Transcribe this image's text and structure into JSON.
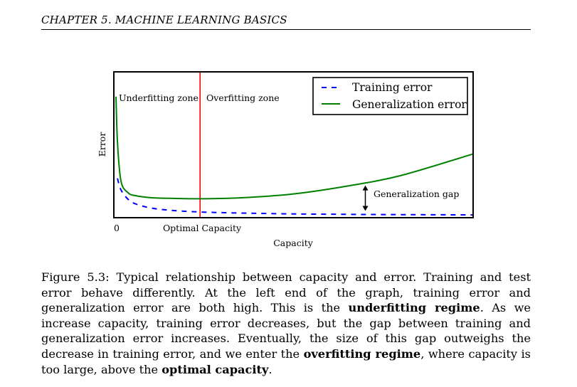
{
  "page_header": "CHAPTER 5.  MACHINE LEARNING BASICS",
  "caption": {
    "label": "Figure 5.3:",
    "part1": " Typical relationship between capacity and error.  Training and test error behave differently. At the left end of the graph, training error and generalization error are both high. This is the ",
    "bold1": "underfitting regime",
    "part2": ". As we increase capacity, training error decreases, but the gap between training and generalization error increases. Eventually, the size of this gap outweighs the decrease in training error, and we enter the ",
    "bold2": "overfitting regime",
    "part3": ", where capacity is too large, above the ",
    "bold3": "optimal capacity",
    "part4": "."
  },
  "chart_data": {
    "type": "line",
    "title": "",
    "xlabel": "Capacity",
    "ylabel": "Error",
    "x_tick_labels": [
      "0",
      "Optimal Capacity"
    ],
    "xlim": [
      0,
      100
    ],
    "ylim": [
      0,
      100
    ],
    "optimal_capacity_x": 24,
    "zone_labels": [
      "Underfitting zone",
      "Overfitting zone"
    ],
    "annotation": "Generalization gap",
    "legend_position": "top-right",
    "colors": {
      "training": "#0000ff",
      "generalization": "#008000",
      "optimal_line": "#ff0000"
    },
    "series": [
      {
        "name": "Training error",
        "style": "dashed",
        "x": [
          1,
          2,
          4,
          6,
          10,
          15,
          24,
          35,
          50,
          65,
          80,
          100
        ],
        "y": [
          27,
          19,
          12.5,
          9.5,
          6.8,
          5.2,
          3.9,
          3.2,
          2.6,
          2.3,
          2.1,
          1.9
        ]
      },
      {
        "name": "Generalization error",
        "style": "solid",
        "x": [
          0.6,
          1,
          2,
          4,
          6,
          10,
          15,
          24,
          35,
          50,
          65,
          80,
          100
        ],
        "y": [
          83,
          52,
          25,
          17,
          15.1,
          13.8,
          13.3,
          13.0,
          13.6,
          16.3,
          21.7,
          29.0,
          43.7
        ]
      }
    ]
  }
}
